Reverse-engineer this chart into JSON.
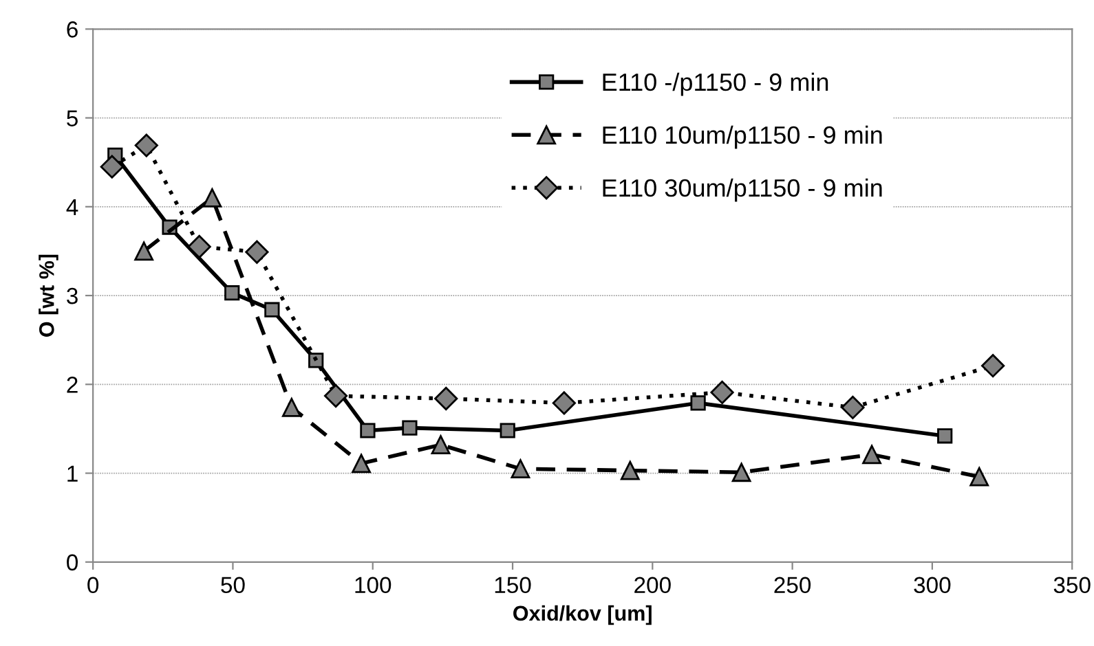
{
  "chart_data": {
    "type": "line",
    "xlabel": "Oxid/kov [um]",
    "ylabel": "O [wt %]",
    "xlim": [
      0,
      350
    ],
    "xticks": [
      0,
      50,
      100,
      150,
      200,
      250,
      300,
      350
    ],
    "ylim": [
      0,
      6
    ],
    "yticks": [
      0,
      1,
      2,
      3,
      4,
      5,
      6
    ],
    "grid": "y",
    "legend": "top right",
    "series": [
      {
        "name": "E110 -/p1150 - 9 min",
        "color": "#000000",
        "marker": "square",
        "line_style": "solid",
        "x": [
          7.9,
          27.4,
          49.7,
          64,
          79.7,
          98.2,
          113.2,
          148.2,
          216.3,
          304.5
        ],
        "values": [
          4.58,
          3.77,
          3.03,
          2.84,
          2.27,
          1.48,
          1.51,
          1.48,
          1.79,
          1.42
        ]
      },
      {
        "name": "E110 10um/p1150 - 9 min",
        "color": "#000000",
        "marker": "triangle",
        "line_style": "dashed",
        "x": [
          18.2,
          42.6,
          71,
          95.9,
          124.3,
          152.8,
          192,
          231.8,
          278.4,
          316.8
        ],
        "values": [
          3.5,
          4.1,
          1.74,
          1.11,
          1.32,
          1.05,
          1.03,
          1.01,
          1.21,
          0.96
        ]
      },
      {
        "name": "E110 30um/p1150 - 9 min",
        "color": "#000000",
        "marker": "diamond",
        "line_style": "dotted",
        "x": [
          6.8,
          19.1,
          38,
          58.6,
          86.8,
          126.2,
          168.4,
          224.9,
          271.6,
          321.7
        ],
        "values": [
          4.45,
          4.69,
          3.55,
          3.49,
          1.87,
          1.84,
          1.79,
          1.91,
          1.74,
          2.21
        ]
      }
    ]
  }
}
